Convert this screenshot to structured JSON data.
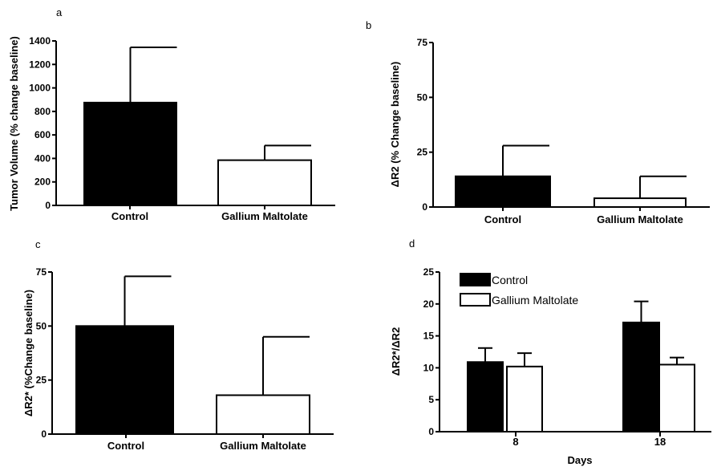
{
  "chart_data": [
    {
      "panel": "a",
      "type": "bar",
      "categories": [
        "Control",
        "Gallium Maltolate"
      ],
      "values": [
        875,
        385
      ],
      "error_upper": [
        1345,
        510
      ],
      "ylabel": "Tumor Volume (% change baseline)",
      "ylim": [
        0,
        1400
      ],
      "yticks": [
        "0",
        "200",
        "400",
        "600",
        "800",
        "1000",
        "1200",
        "1400"
      ],
      "fills": [
        "#000000",
        "#ffffff"
      ]
    },
    {
      "panel": "b",
      "type": "bar",
      "categories": [
        "Control",
        "Gallium Maltolate"
      ],
      "values": [
        14,
        4
      ],
      "error_upper": [
        28,
        14
      ],
      "ylabel": "ΔR2 (% Change baseline)",
      "ylim": [
        0,
        75
      ],
      "yticks": [
        "0",
        "25",
        "50",
        "75"
      ],
      "fills": [
        "#000000",
        "#ffffff"
      ]
    },
    {
      "panel": "c",
      "type": "bar",
      "categories": [
        "Control",
        "Gallium Maltolate"
      ],
      "values": [
        50,
        18
      ],
      "error_upper": [
        73,
        45
      ],
      "ylabel": "ΔR2* (%Change baseline)",
      "ylim": [
        0,
        75
      ],
      "yticks": [
        "0",
        "25",
        "50",
        "75"
      ],
      "fills": [
        "#000000",
        "#ffffff"
      ]
    },
    {
      "panel": "d",
      "type": "bar",
      "categories": [
        "8",
        "18"
      ],
      "series": [
        {
          "name": "Control",
          "values": [
            10.9,
            17.1
          ],
          "error_upper": [
            13.1,
            20.4
          ],
          "fill": "#000000"
        },
        {
          "name": "Gallium Maltolate",
          "values": [
            10.2,
            10.5
          ],
          "error_upper": [
            12.3,
            11.6
          ],
          "fill": "#ffffff"
        }
      ],
      "xlabel": "Days",
      "ylabel": "ΔR2*/ΔR2",
      "ylim": [
        0,
        25
      ],
      "yticks": [
        "0",
        "5",
        "10",
        "15",
        "20",
        "25"
      ],
      "legend": "top-left"
    }
  ]
}
